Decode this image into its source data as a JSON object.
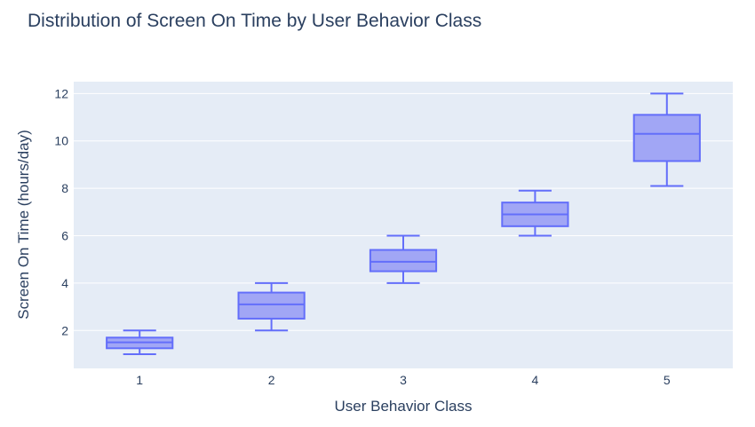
{
  "chart_data": {
    "type": "box",
    "title": "Distribution of Screen On Time by User Behavior Class",
    "xlabel": "User Behavior Class",
    "ylabel": "Screen On Time (hours/day)",
    "categories": [
      "1",
      "2",
      "3",
      "4",
      "5"
    ],
    "boxes": [
      {
        "category": "1",
        "min": 1.0,
        "q1": 1.25,
        "median": 1.5,
        "q3": 1.7,
        "max": 2.0
      },
      {
        "category": "2",
        "min": 2.0,
        "q1": 2.5,
        "median": 3.1,
        "q3": 3.6,
        "max": 4.0
      },
      {
        "category": "3",
        "min": 4.0,
        "q1": 4.5,
        "median": 4.9,
        "q3": 5.4,
        "max": 6.0
      },
      {
        "category": "4",
        "min": 6.0,
        "q1": 6.4,
        "median": 6.9,
        "q3": 7.4,
        "max": 7.9
      },
      {
        "category": "5",
        "min": 8.1,
        "q1": 9.15,
        "median": 10.3,
        "q3": 11.1,
        "max": 12.0
      }
    ],
    "yticks": [
      "2",
      "4",
      "6",
      "8",
      "10",
      "12"
    ],
    "ylim": [
      0.4,
      12.5
    ],
    "grid": true,
    "legend": "none",
    "colors": {
      "plot_bg": "#e5ecf6",
      "grid": "#ffffff",
      "box_line": "#636efa",
      "box_fill": "#a1a6f5",
      "text": "#2a3f5f"
    }
  }
}
